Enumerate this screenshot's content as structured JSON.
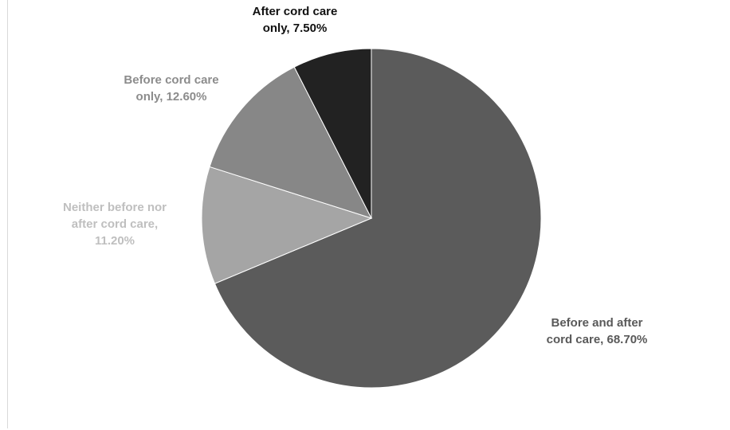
{
  "chart_data": {
    "type": "pie",
    "slices": [
      {
        "label": "Before and after\ncord care, 68.70%",
        "value": 68.7,
        "color": "#5b5b5b",
        "label_color": "#595959"
      },
      {
        "label": "Neither before nor\nafter cord care,\n11.20%",
        "value": 11.2,
        "color": "#a5a5a5",
        "label_color": "#bfbfbf"
      },
      {
        "label": "Before cord care\nonly, 12.60%",
        "value": 12.6,
        "color": "#878787",
        "label_color": "#8c8c8c"
      },
      {
        "label": "After cord care\nonly, 7.50%",
        "value": 7.5,
        "color": "#222222",
        "label_color": "#111111"
      }
    ],
    "start_angle_deg": 0,
    "direction": "clockwise",
    "legend": "none",
    "data_labels": "outside"
  }
}
